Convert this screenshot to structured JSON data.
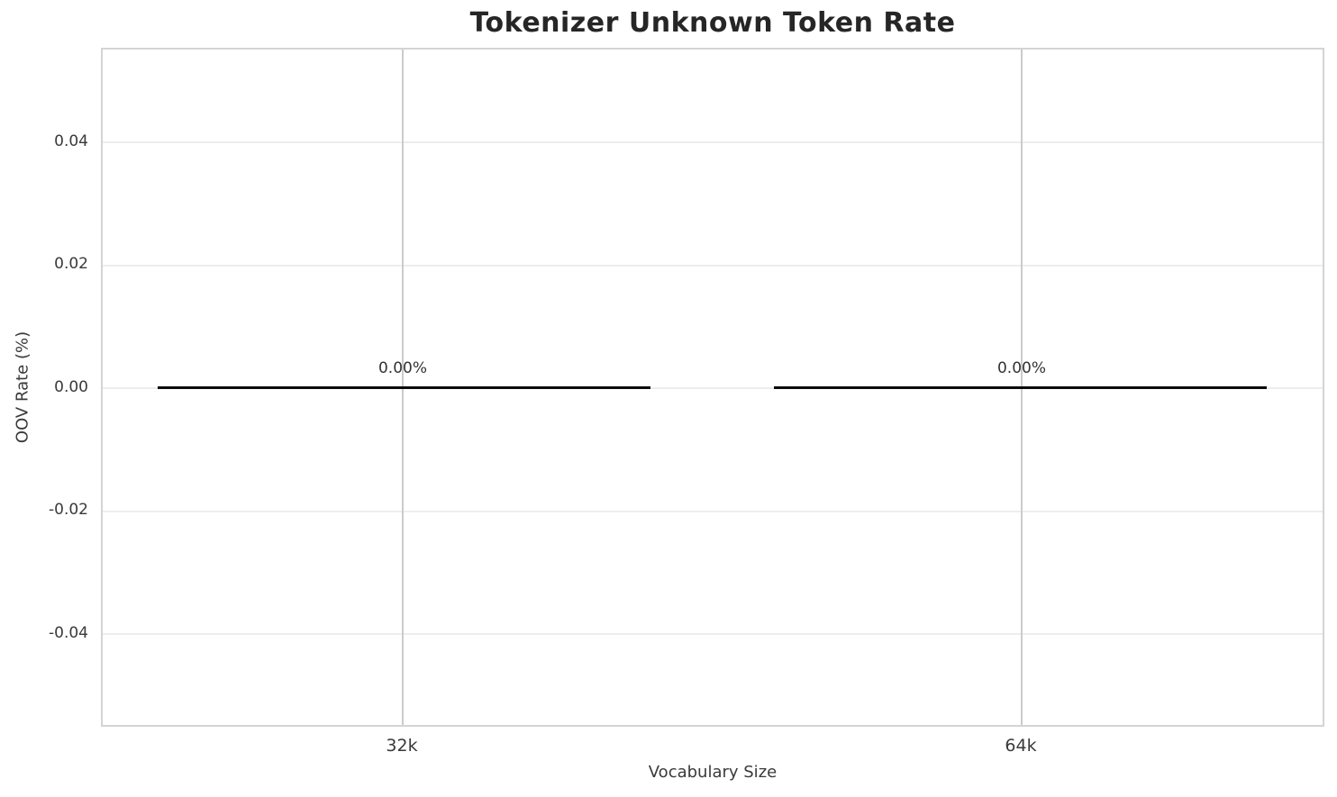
{
  "chart_data": {
    "type": "bar",
    "title": "Tokenizer Unknown Token Rate",
    "xlabel": "Vocabulary Size",
    "ylabel": "OOV Rate (%)",
    "categories": [
      "32k",
      "64k"
    ],
    "values": [
      0.0,
      0.0
    ],
    "value_labels": [
      "0.00%",
      "0.00%"
    ],
    "yticks": [
      0.04,
      0.02,
      0.0,
      -0.02,
      -0.04
    ],
    "ytick_labels": [
      "0.04",
      "0.02",
      "0.00",
      "-0.02",
      "-0.04"
    ],
    "ylim": [
      -0.055,
      0.055
    ],
    "grid": true,
    "legend": "none",
    "bar_style": "zero-height bars rendered as horizontal black lines at y=0",
    "colors": {
      "grid_h": "#ededed",
      "grid_v": "#cbcbcb",
      "spine": "#d4d4d4",
      "text": "#3a3a3a",
      "title": "#262626",
      "bar_line": "#0a0a0a",
      "bg": "#ffffff"
    }
  }
}
